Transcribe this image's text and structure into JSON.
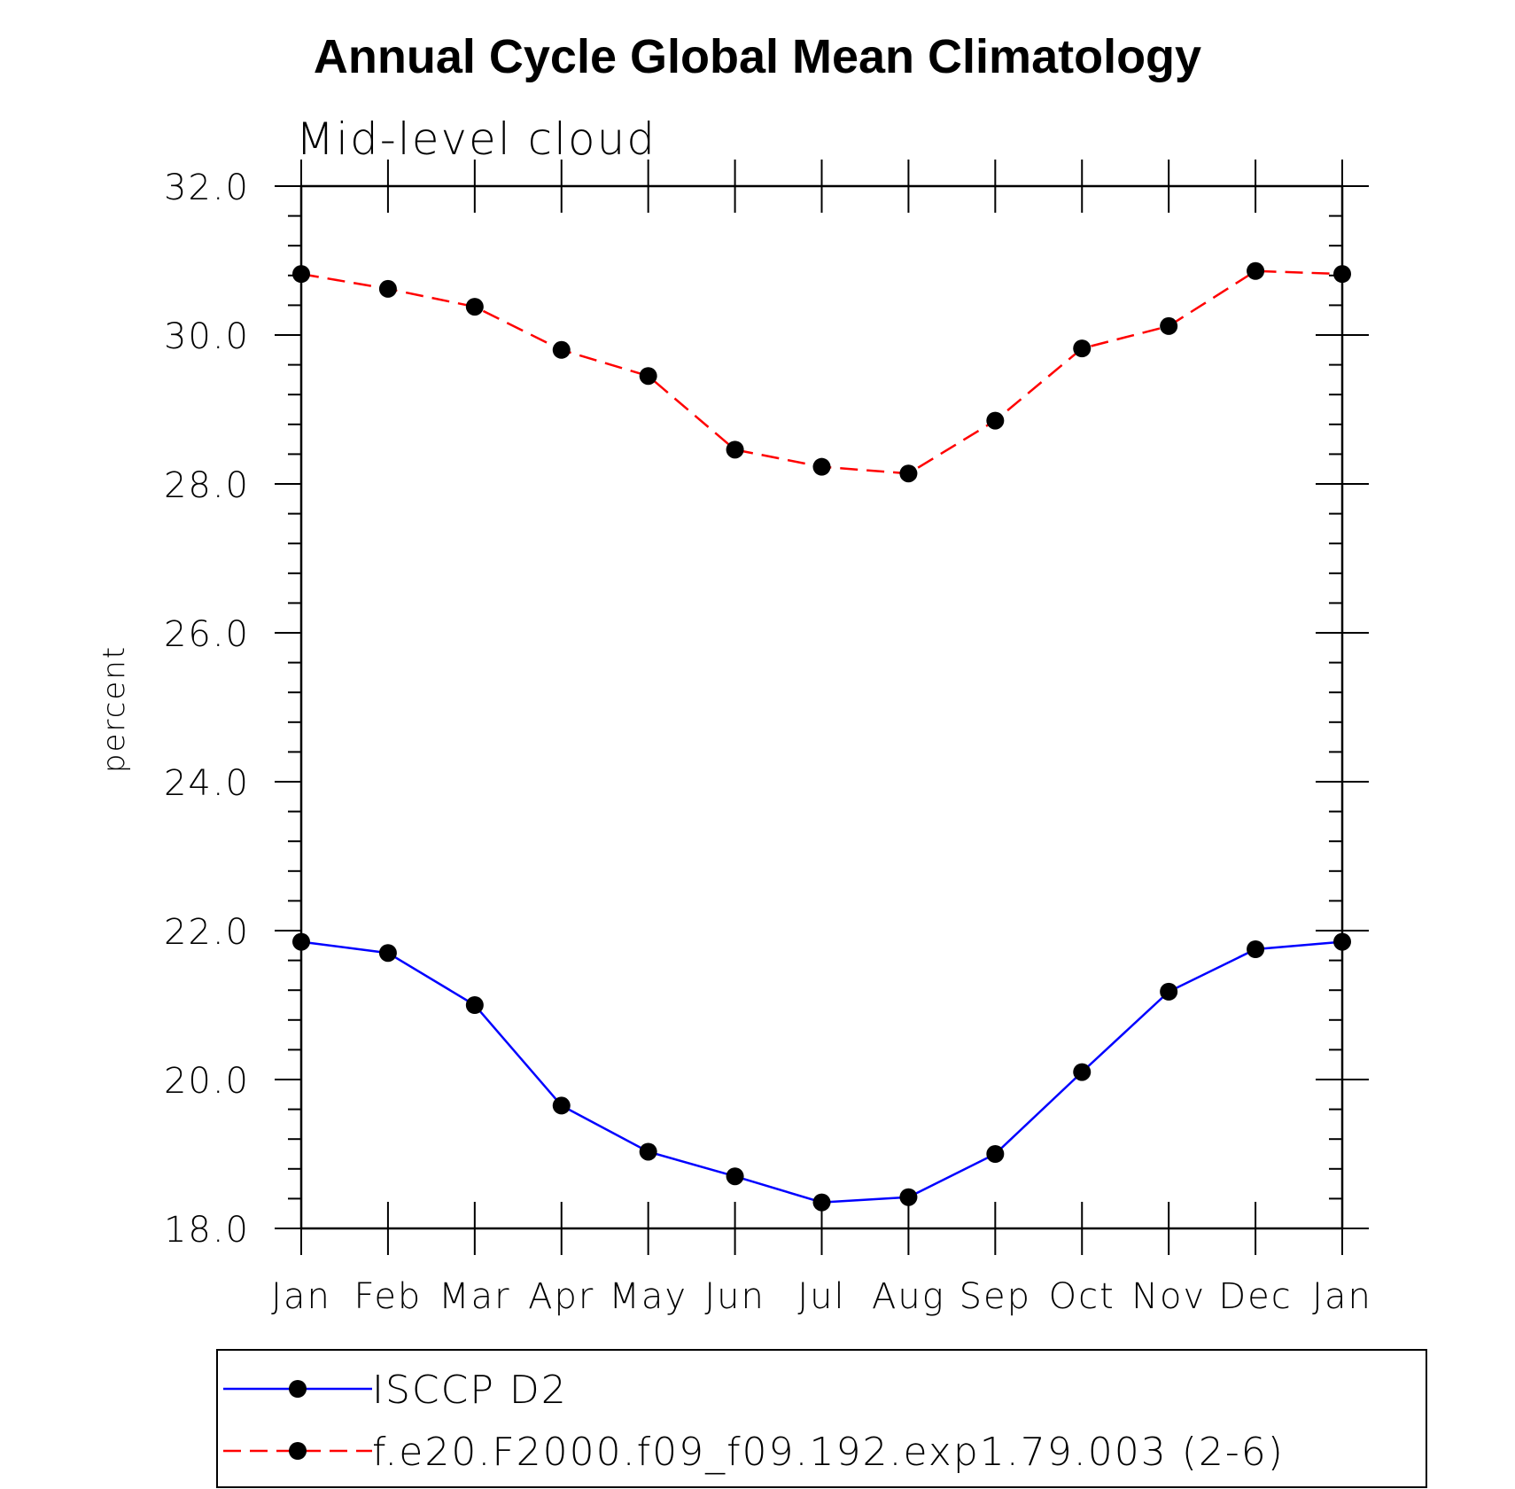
{
  "chart_data": {
    "type": "line",
    "title": "Annual Cycle Global Mean Climatology",
    "subtitle": "Mid-level cloud",
    "ylabel": "percent",
    "xlabel": "",
    "categories": [
      "Jan",
      "Feb",
      "Mar",
      "Apr",
      "May",
      "Jun",
      "Jul",
      "Aug",
      "Sep",
      "Oct",
      "Nov",
      "Dec",
      "Jan"
    ],
    "ylim": [
      18.0,
      32.0
    ],
    "yticks": [
      "18.0",
      "20.0",
      "22.0",
      "24.0",
      "26.0",
      "28.0",
      "30.0",
      "32.0"
    ],
    "grid": false,
    "legend_position": "bottom",
    "series": [
      {
        "name": "ISCCP D2",
        "color": "#0000ff",
        "dash": "solid",
        "values": [
          21.85,
          21.7,
          21.0,
          19.65,
          19.03,
          18.7,
          18.35,
          18.42,
          19.0,
          20.1,
          21.18,
          21.75,
          21.85
        ]
      },
      {
        "name": "f.e20.F2000.f09_f09.192.exp1.79.003 (2-6)",
        "color": "#ff0000",
        "dash": "dashed",
        "values": [
          30.82,
          30.62,
          30.38,
          29.8,
          29.45,
          28.46,
          28.23,
          28.14,
          28.85,
          29.82,
          30.12,
          30.86,
          30.82
        ]
      }
    ]
  }
}
